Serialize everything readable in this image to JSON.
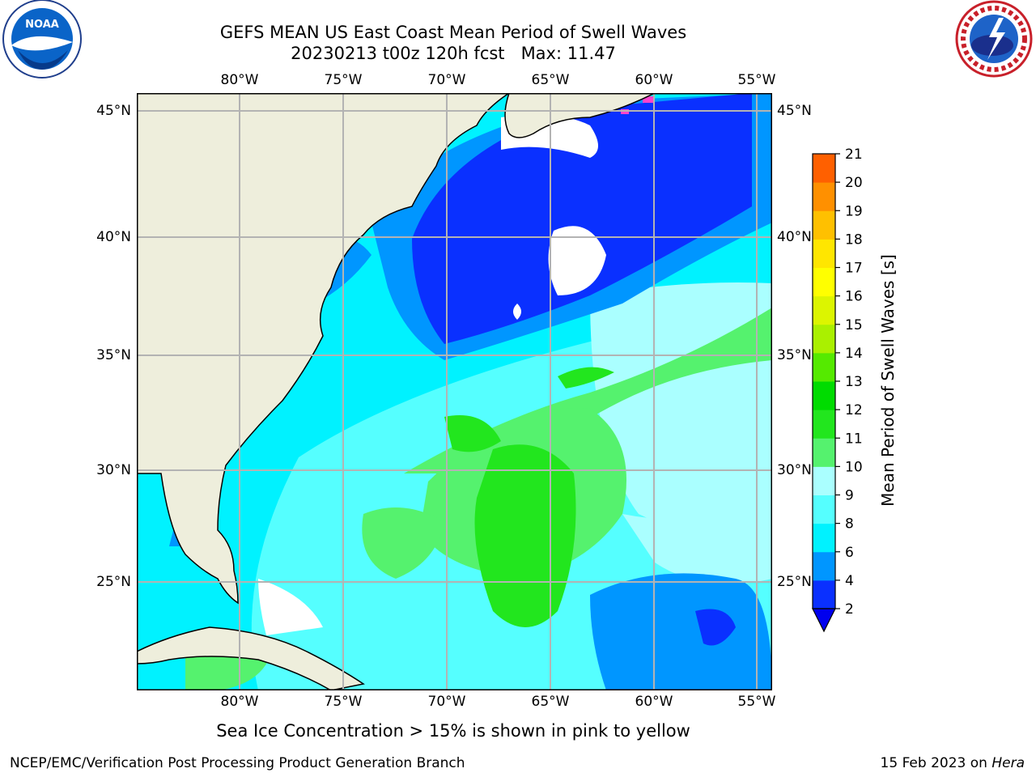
{
  "title": {
    "line1": "GEFS MEAN US East Coast Mean Period of Swell Waves",
    "line2": "20230213 t00z 120h fcst   Max: 11.47"
  },
  "logos": {
    "left": {
      "name": "noaa-logo",
      "text": "NOAA"
    },
    "right": {
      "name": "nws-logo",
      "text": "NATIONAL WEATHER SERVICE"
    }
  },
  "map": {
    "lon_ticks": [
      "80°W",
      "75°W",
      "70°W",
      "65°W",
      "60°W",
      "55°W"
    ],
    "lat_ticks": [
      "45°N",
      "40°N",
      "35°N",
      "30°N",
      "25°N"
    ],
    "land_color": "#eeeedc",
    "gridline_color": "#b3b3b3"
  },
  "colorbar": {
    "label": "Mean Period of Swell Waves [s]",
    "ticks": [
      "2",
      "4",
      "6",
      "8",
      "9",
      "10",
      "11",
      "12",
      "13",
      "14",
      "15",
      "16",
      "17",
      "18",
      "19",
      "20",
      "21"
    ],
    "colors": [
      "#0a30ff",
      "#0096ff",
      "#00f2ff",
      "#55ffff",
      "#aaffff",
      "#55f26e",
      "#22e61e",
      "#00dc00",
      "#55ea00",
      "#aaf000",
      "#dcf500",
      "#ffff00",
      "#ffe600",
      "#ffc000",
      "#ff9000",
      "#ff6000",
      "#ff3000",
      "#ff0000"
    ],
    "underflow_color": "#0000ee"
  },
  "caption": "Sea Ice Concentration > 15% is shown in pink to yellow",
  "footer": {
    "left": "NCEP/EMC/Verification Post Processing Product Generation Branch",
    "right_date": "15 Feb 2023 on ",
    "right_host": "Hera"
  }
}
